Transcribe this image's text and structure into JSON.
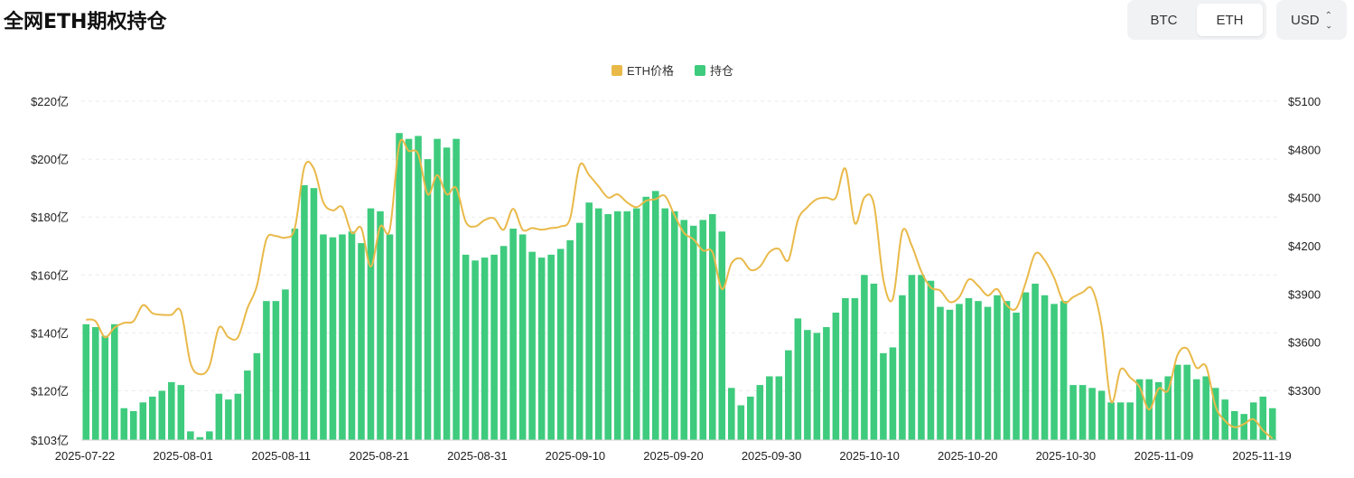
{
  "page": {
    "title": "全网ETH期权持仓"
  },
  "controls": {
    "assets": [
      {
        "label": "BTC",
        "active": false
      },
      {
        "label": "ETH",
        "active": true
      }
    ],
    "currency": "USD"
  },
  "chart_data": {
    "type": "bar+line",
    "legend": [
      "ETH价格",
      "持仓"
    ],
    "colors": {
      "price": "#e9b949",
      "oi": "#3ecb7d"
    },
    "left_axis": {
      "ticks": [
        "$103亿",
        "$120亿",
        "$140亿",
        "$160亿",
        "$180亿",
        "$200亿",
        "$220亿"
      ],
      "values": [
        103,
        120,
        140,
        160,
        180,
        200,
        220
      ],
      "range": [
        103,
        220
      ]
    },
    "right_axis": {
      "ticks": [
        "$3300",
        "$3600",
        "$3900",
        "$4200",
        "$4500",
        "$4800",
        "$5100"
      ],
      "values": [
        3300,
        3600,
        3900,
        4200,
        4500,
        4800,
        5100
      ],
      "range": [
        2990,
        5100
      ]
    },
    "x_ticks": [
      "2025-07-22",
      "2025-08-01",
      "2025-08-11",
      "2025-08-21",
      "2025-08-31",
      "2025-09-10",
      "2025-09-20",
      "2025-09-30",
      "2025-10-10",
      "2025-10-20",
      "2025-10-30",
      "2025-11-09",
      "2025-11-19"
    ],
    "open_interest": [
      143,
      142,
      139,
      143,
      114,
      113,
      116,
      118,
      120,
      123,
      122,
      106,
      104,
      106,
      119,
      117,
      119,
      127,
      133,
      151,
      151,
      155,
      176,
      191,
      190,
      174,
      173,
      174,
      175,
      171,
      183,
      182,
      174,
      209,
      207,
      208,
      200,
      207,
      204,
      207,
      167,
      165,
      166,
      167,
      170,
      176,
      174,
      168,
      166,
      167,
      169,
      172,
      178,
      185,
      183,
      181,
      182,
      182,
      183,
      187,
      189,
      183,
      182,
      179,
      177,
      179,
      181,
      175,
      121,
      115,
      118,
      122,
      125,
      125,
      134,
      145,
      141,
      140,
      142,
      147,
      152,
      152,
      160,
      157,
      133,
      135,
      153,
      160,
      160,
      158,
      149,
      148,
      150,
      152,
      151,
      149,
      153,
      151,
      147,
      154,
      157,
      153,
      150,
      151,
      122,
      122,
      121,
      120,
      116,
      116,
      116,
      124,
      124,
      123,
      125,
      129,
      129,
      124,
      125,
      121,
      117,
      113,
      112,
      116,
      118,
      114
    ],
    "eth_price": [
      3740,
      3730,
      3630,
      3690,
      3720,
      3730,
      3830,
      3780,
      3770,
      3770,
      3790,
      3470,
      3400,
      3450,
      3690,
      3630,
      3630,
      3810,
      3950,
      4240,
      4260,
      4250,
      4310,
      4690,
      4680,
      4470,
      4420,
      4440,
      4280,
      4310,
      4070,
      4320,
      4300,
      4830,
      4790,
      4770,
      4520,
      4640,
      4520,
      4560,
      4350,
      4320,
      4360,
      4370,
      4300,
      4430,
      4300,
      4310,
      4300,
      4310,
      4320,
      4370,
      4700,
      4640,
      4570,
      4500,
      4520,
      4470,
      4440,
      4480,
      4490,
      4510,
      4390,
      4280,
      4240,
      4170,
      4160,
      3930,
      4090,
      4120,
      4050,
      4070,
      4160,
      4180,
      4110,
      4360,
      4440,
      4490,
      4500,
      4500,
      4680,
      4340,
      4500,
      4460,
      3990,
      3870,
      4290,
      4200,
      4040,
      3940,
      3920,
      3850,
      3880,
      3990,
      3950,
      3890,
      3930,
      3830,
      3810,
      3970,
      4150,
      4110,
      4000,
      3850,
      3880,
      3910,
      3930,
      3700,
      3230,
      3430,
      3380,
      3320,
      3180,
      3310,
      3300,
      3520,
      3560,
      3440,
      3450,
      3200,
      3110,
      3070,
      3090,
      3120,
      3050,
      3000
    ]
  }
}
